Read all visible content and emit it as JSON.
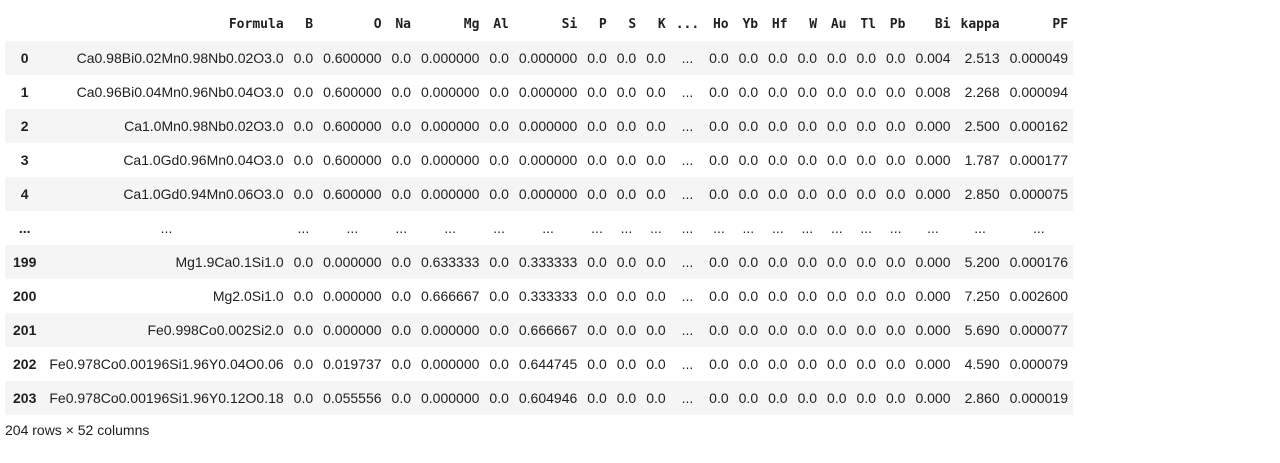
{
  "table": {
    "columns": [
      "",
      "Formula",
      "B",
      "O",
      "Na",
      "Mg",
      "Al",
      "Si",
      "P",
      "S",
      "K",
      "...",
      "Ho",
      "Yb",
      "Hf",
      "W",
      "Au",
      "Tl",
      "Pb",
      "Bi",
      "kappa",
      "PF"
    ],
    "rows": [
      [
        "0",
        "Ca0.98Bi0.02Mn0.98Nb0.02O3.0",
        "0.0",
        "0.600000",
        "0.0",
        "0.000000",
        "0.0",
        "0.000000",
        "0.0",
        "0.0",
        "0.0",
        "...",
        "0.0",
        "0.0",
        "0.0",
        "0.0",
        "0.0",
        "0.0",
        "0.0",
        "0.004",
        "2.513",
        "0.000049"
      ],
      [
        "1",
        "Ca0.96Bi0.04Mn0.96Nb0.04O3.0",
        "0.0",
        "0.600000",
        "0.0",
        "0.000000",
        "0.0",
        "0.000000",
        "0.0",
        "0.0",
        "0.0",
        "...",
        "0.0",
        "0.0",
        "0.0",
        "0.0",
        "0.0",
        "0.0",
        "0.0",
        "0.008",
        "2.268",
        "0.000094"
      ],
      [
        "2",
        "Ca1.0Mn0.98Nb0.02O3.0",
        "0.0",
        "0.600000",
        "0.0",
        "0.000000",
        "0.0",
        "0.000000",
        "0.0",
        "0.0",
        "0.0",
        "...",
        "0.0",
        "0.0",
        "0.0",
        "0.0",
        "0.0",
        "0.0",
        "0.0",
        "0.000",
        "2.500",
        "0.000162"
      ],
      [
        "3",
        "Ca1.0Gd0.96Mn0.04O3.0",
        "0.0",
        "0.600000",
        "0.0",
        "0.000000",
        "0.0",
        "0.000000",
        "0.0",
        "0.0",
        "0.0",
        "...",
        "0.0",
        "0.0",
        "0.0",
        "0.0",
        "0.0",
        "0.0",
        "0.0",
        "0.000",
        "1.787",
        "0.000177"
      ],
      [
        "4",
        "Ca1.0Gd0.94Mn0.06O3.0",
        "0.0",
        "0.600000",
        "0.0",
        "0.000000",
        "0.0",
        "0.000000",
        "0.0",
        "0.0",
        "0.0",
        "...",
        "0.0",
        "0.0",
        "0.0",
        "0.0",
        "0.0",
        "0.0",
        "0.0",
        "0.000",
        "2.850",
        "0.000075"
      ],
      [
        "...",
        "...",
        "...",
        "...",
        "...",
        "...",
        "...",
        "...",
        "...",
        "...",
        "...",
        "...",
        "...",
        "...",
        "...",
        "...",
        "...",
        "...",
        "...",
        "...",
        "...",
        "..."
      ],
      [
        "199",
        "Mg1.9Ca0.1Si1.0",
        "0.0",
        "0.000000",
        "0.0",
        "0.633333",
        "0.0",
        "0.333333",
        "0.0",
        "0.0",
        "0.0",
        "...",
        "0.0",
        "0.0",
        "0.0",
        "0.0",
        "0.0",
        "0.0",
        "0.0",
        "0.000",
        "5.200",
        "0.000176"
      ],
      [
        "200",
        "Mg2.0Si1.0",
        "0.0",
        "0.000000",
        "0.0",
        "0.666667",
        "0.0",
        "0.333333",
        "0.0",
        "0.0",
        "0.0",
        "...",
        "0.0",
        "0.0",
        "0.0",
        "0.0",
        "0.0",
        "0.0",
        "0.0",
        "0.000",
        "7.250",
        "0.002600"
      ],
      [
        "201",
        "Fe0.998Co0.002Si2.0",
        "0.0",
        "0.000000",
        "0.0",
        "0.000000",
        "0.0",
        "0.666667",
        "0.0",
        "0.0",
        "0.0",
        "...",
        "0.0",
        "0.0",
        "0.0",
        "0.0",
        "0.0",
        "0.0",
        "0.0",
        "0.000",
        "5.690",
        "0.000077"
      ],
      [
        "202",
        "Fe0.978Co0.00196Si1.96Y0.04O0.06",
        "0.0",
        "0.019737",
        "0.0",
        "0.000000",
        "0.0",
        "0.644745",
        "0.0",
        "0.0",
        "0.0",
        "...",
        "0.0",
        "0.0",
        "0.0",
        "0.0",
        "0.0",
        "0.0",
        "0.0",
        "0.000",
        "4.590",
        "0.000079"
      ],
      [
        "203",
        "Fe0.978Co0.00196Si1.96Y0.12O0.18",
        "0.0",
        "0.055556",
        "0.0",
        "0.000000",
        "0.0",
        "0.604946",
        "0.0",
        "0.0",
        "0.0",
        "...",
        "0.0",
        "0.0",
        "0.0",
        "0.0",
        "0.0",
        "0.0",
        "0.0",
        "0.000",
        "2.860",
        "0.000019"
      ]
    ]
  },
  "footer": {
    "shape_text": "204 rows × 52 columns"
  }
}
